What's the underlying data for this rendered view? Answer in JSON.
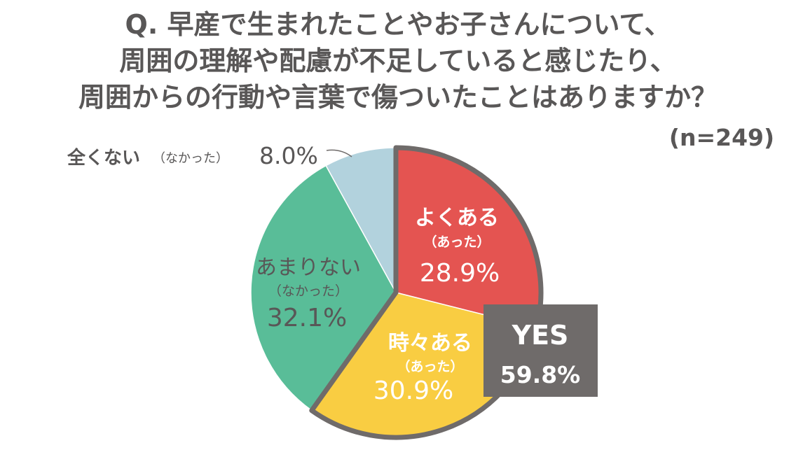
{
  "title": {
    "line1": "Q. 早産で生まれたことやお子さんについて、",
    "line2": "周囲の理解や配慮が不足していると感じたり、",
    "line3": "周囲からの行動や言葉で傷ついたことはありますか？"
  },
  "sample_size": "(n=249)",
  "yes_box": {
    "label": "YES",
    "value": "59.8%"
  },
  "colors": {
    "often": "#e45451",
    "sometimes": "#f9cd42",
    "rarely": "#59bd98",
    "never": "#b2d2dd",
    "highlight_border": "#6f6b6a",
    "text": "#595757"
  },
  "chart_data": {
    "type": "pie",
    "title": "Q. 早産で生まれたことやお子さんについて、周囲の理解や配慮が不足していると感じたり、周囲からの行動や言葉で傷ついたことはありますか？",
    "n": 249,
    "slices": [
      {
        "label": "よくある",
        "sub": "（あった）",
        "value": 28.9,
        "display": "28.9%"
      },
      {
        "label": "時々ある",
        "sub": "（あった）",
        "value": 30.9,
        "display": "30.9%"
      },
      {
        "label": "あまりない",
        "sub": "（なかった）",
        "value": 32.1,
        "display": "32.1%"
      },
      {
        "label": "全くない",
        "sub": "（なかった）",
        "value": 8.0,
        "display": "8.0%"
      }
    ],
    "grouped": {
      "label": "YES",
      "value": 59.8,
      "display": "59.8%",
      "includes": [
        "よくある",
        "時々ある"
      ]
    }
  }
}
